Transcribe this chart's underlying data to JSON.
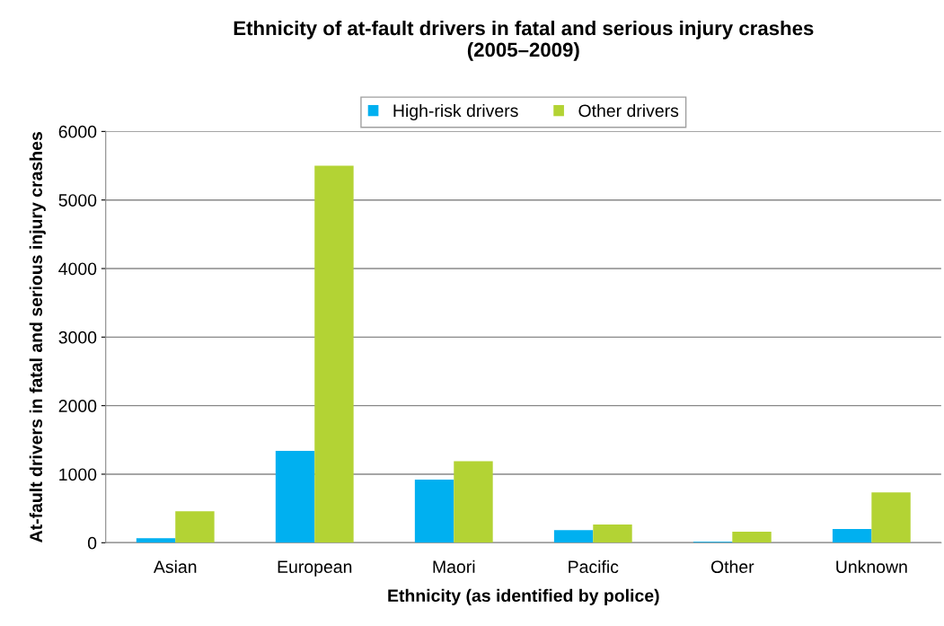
{
  "chart_data": {
    "type": "bar",
    "title": "Ethnicity of at-fault drivers in fatal and serious injury crashes\n(2005–2009)",
    "xlabel": "Ethnicity (as identified by police)",
    "ylabel": "At-fault drivers in fatal and serious injury crashes",
    "categories": [
      "Asian",
      "European",
      "Maori",
      "Pacific",
      "Other",
      "Unknown"
    ],
    "series": [
      {
        "name": "High-risk drivers",
        "color": "#00b0f0",
        "values": [
          65,
          1340,
          920,
          185,
          15,
          200
        ]
      },
      {
        "name": "Other drivers",
        "color": "#b3d334",
        "values": [
          460,
          5500,
          1190,
          265,
          160,
          735
        ]
      }
    ],
    "ylim": [
      0,
      6000
    ],
    "yticks": [
      0,
      1000,
      2000,
      3000,
      4000,
      5000,
      6000
    ],
    "grid": "y",
    "legend": "top"
  }
}
